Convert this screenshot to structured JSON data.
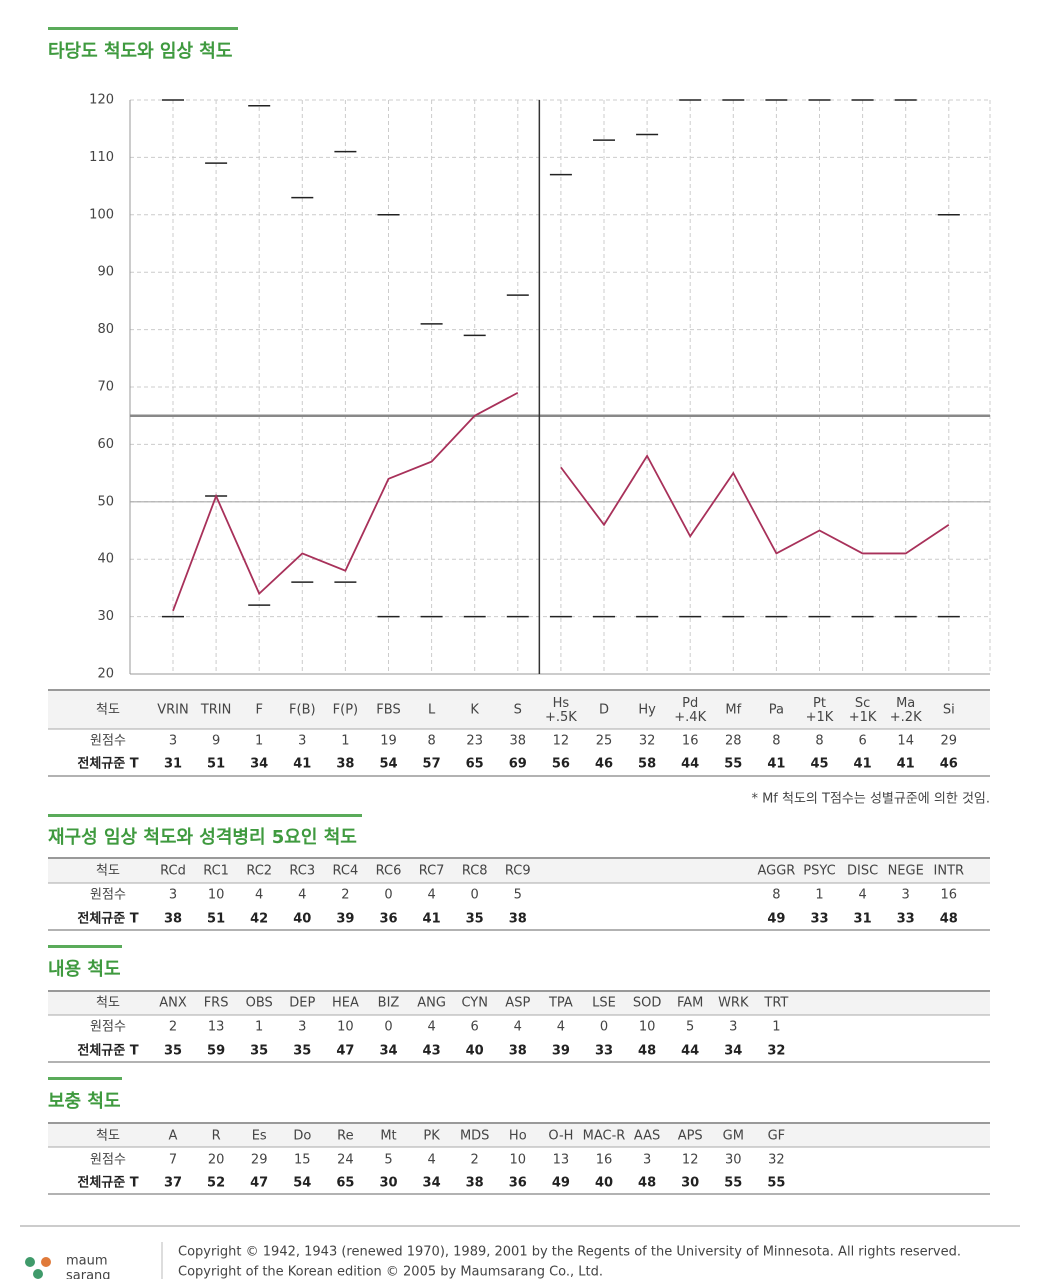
{
  "chart_data": {
    "type": "line",
    "title": "타당도 척도와 임상 척도",
    "ylim": [
      20,
      120
    ],
    "yticks": [
      20,
      30,
      40,
      50,
      60,
      70,
      80,
      90,
      100,
      110,
      120
    ],
    "grid": true,
    "color": "#a8315a",
    "reference_lines": [
      65,
      50
    ],
    "groups": [
      {
        "categories": [
          "VRIN",
          "TRIN",
          "F",
          "F(B)",
          "F(P)",
          "FBS",
          "L",
          "K",
          "S"
        ],
        "raw": [
          3,
          9,
          1,
          3,
          1,
          19,
          8,
          23,
          38
        ],
        "values": [
          31,
          51,
          34,
          41,
          38,
          54,
          57,
          65,
          69
        ],
        "upper": [
          120,
          109,
          119,
          103,
          111,
          100,
          81,
          79,
          86
        ],
        "lower": [
          30,
          51,
          32,
          36,
          36,
          30,
          30,
          30,
          30
        ]
      },
      {
        "categories": [
          "Hs\n+.5K",
          "D",
          "Hy",
          "Pd\n+.4K",
          "Mf",
          "Pa",
          "Pt\n+1K",
          "Sc\n+1K",
          "Ma\n+.2K",
          "Si"
        ],
        "raw": [
          12,
          25,
          32,
          16,
          28,
          8,
          8,
          6,
          14,
          29
        ],
        "values": [
          56,
          46,
          58,
          44,
          55,
          41,
          45,
          41,
          41,
          46
        ],
        "upper": [
          107,
          113,
          114,
          120,
          120,
          120,
          120,
          120,
          120,
          100
        ],
        "lower": [
          30,
          30,
          30,
          30,
          30,
          30,
          30,
          30,
          30,
          30
        ]
      }
    ],
    "note": "* Mf 척도의 T점수는 성별규준에 의한 것임."
  },
  "row_labels": [
    "척도",
    "원점수",
    "전체규준 T"
  ],
  "tables": [
    {
      "title": "재구성 임상 척도와 성격병리 5요인 척도",
      "groups": [
        {
          "scales": [
            "RCd",
            "RC1",
            "RC2",
            "RC3",
            "RC4",
            "RC6",
            "RC7",
            "RC8",
            "RC9"
          ],
          "raw": [
            3,
            10,
            4,
            4,
            2,
            0,
            4,
            0,
            5
          ],
          "t": [
            38,
            51,
            42,
            40,
            39,
            36,
            41,
            35,
            38
          ]
        },
        {
          "scales": [
            "AGGR",
            "PSYC",
            "DISC",
            "NEGE",
            "INTR"
          ],
          "raw": [
            8,
            1,
            4,
            3,
            16
          ],
          "t": [
            49,
            33,
            31,
            33,
            48
          ]
        }
      ]
    },
    {
      "title": "내용 척도",
      "groups": [
        {
          "scales": [
            "ANX",
            "FRS",
            "OBS",
            "DEP",
            "HEA",
            "BIZ",
            "ANG",
            "CYN",
            "ASP",
            "TPA",
            "LSE",
            "SOD",
            "FAM",
            "WRK",
            "TRT"
          ],
          "raw": [
            2,
            13,
            1,
            3,
            10,
            0,
            4,
            6,
            4,
            4,
            0,
            10,
            5,
            3,
            1
          ],
          "t": [
            35,
            59,
            35,
            35,
            47,
            34,
            43,
            40,
            38,
            39,
            33,
            48,
            44,
            34,
            32
          ]
        }
      ]
    },
    {
      "title": "보충 척도",
      "groups": [
        {
          "scales": [
            "A",
            "R",
            "Es",
            "Do",
            "Re",
            "Mt",
            "PK",
            "MDS",
            "Ho",
            "O-H",
            "MAC-R",
            "AAS",
            "APS",
            "GM",
            "GF"
          ],
          "raw": [
            7,
            20,
            29,
            15,
            24,
            5,
            4,
            2,
            10,
            13,
            16,
            3,
            12,
            30,
            32
          ],
          "t": [
            37,
            52,
            47,
            54,
            65,
            30,
            34,
            38,
            36,
            49,
            40,
            48,
            30,
            55,
            55
          ]
        }
      ]
    }
  ],
  "footer": {
    "logo_top": "maum",
    "logo_bottom": "sarang",
    "copyright": [
      "Copyright © 1942, 1943 (renewed 1970), 1989, 2001 by the Regents of the University of Minnesota. All rights reserved.",
      "Copyright of the Korean edition © 2005 by Maumsarang Co., Ltd."
    ]
  }
}
